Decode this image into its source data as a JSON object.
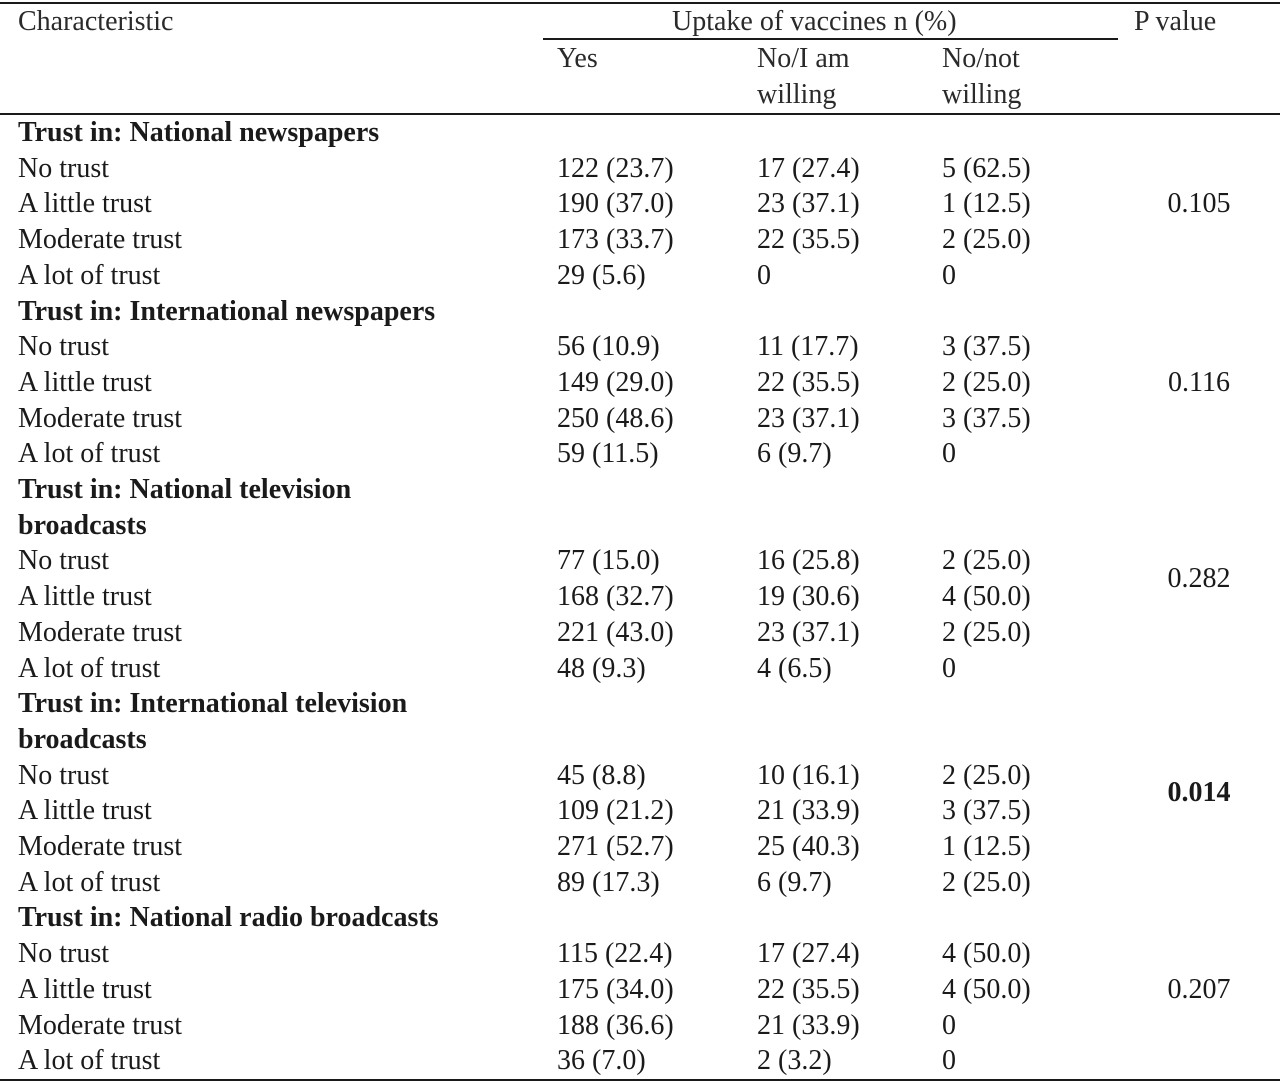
{
  "header": {
    "characteristic": "Characteristic",
    "uptake": "Uptake of vaccines n (%)",
    "p_value": "P value",
    "yes": "Yes",
    "no_willing": [
      "No/I am",
      "willing"
    ],
    "no_not_willing": [
      "No/not",
      "willing"
    ]
  },
  "sections": [
    {
      "title": [
        "Trust in: National newspapers"
      ],
      "p_value": "0.105",
      "p_bold": false,
      "rows": [
        {
          "label": "No trust",
          "yes": "122 (23.7)",
          "willing": "17 (27.4)",
          "not_willing": "5 (62.5)"
        },
        {
          "label": "A little trust",
          "yes": "190 (37.0)",
          "willing": "23 (37.1)",
          "not_willing": "1 (12.5)"
        },
        {
          "label": "Moderate trust",
          "yes": "173 (33.7)",
          "willing": "22 (35.5)",
          "not_willing": "2 (25.0)"
        },
        {
          "label": "A lot of trust",
          "yes": "29 (5.6)",
          "willing": "0",
          "not_willing": "0"
        }
      ]
    },
    {
      "title": [
        "Trust in: International newspapers"
      ],
      "p_value": "0.116",
      "p_bold": false,
      "rows": [
        {
          "label": "No trust",
          "yes": "56 (10.9)",
          "willing": "11 (17.7)",
          "not_willing": "3 (37.5)"
        },
        {
          "label": "A little trust",
          "yes": "149 (29.0)",
          "willing": "22 (35.5)",
          "not_willing": "2 (25.0)"
        },
        {
          "label": "Moderate trust",
          "yes": "250 (48.6)",
          "willing": "23 (37.1)",
          "not_willing": "3 (37.5)"
        },
        {
          "label": "A lot of trust",
          "yes": "59 (11.5)",
          "willing": "6 (9.7)",
          "not_willing": "0"
        }
      ]
    },
    {
      "title": [
        "Trust in: National television",
        "broadcasts"
      ],
      "p_value": "0.282",
      "p_bold": false,
      "rows": [
        {
          "label": "No trust",
          "yes": "77 (15.0)",
          "willing": "16 (25.8)",
          "not_willing": "2 (25.0)"
        },
        {
          "label": "A little trust",
          "yes": "168 (32.7)",
          "willing": "19 (30.6)",
          "not_willing": "4 (50.0)"
        },
        {
          "label": "Moderate trust",
          "yes": "221 (43.0)",
          "willing": "23 (37.1)",
          "not_willing": "2 (25.0)"
        },
        {
          "label": "A lot of trust",
          "yes": "48 (9.3)",
          "willing": "4 (6.5)",
          "not_willing": "0"
        }
      ]
    },
    {
      "title": [
        "Trust in: International television",
        "broadcasts"
      ],
      "p_value": "0.014",
      "p_bold": true,
      "rows": [
        {
          "label": "No trust",
          "yes": "45 (8.8)",
          "willing": "10 (16.1)",
          "not_willing": "2 (25.0)"
        },
        {
          "label": "A little trust",
          "yes": "109 (21.2)",
          "willing": "21 (33.9)",
          "not_willing": "3 (37.5)"
        },
        {
          "label": "Moderate trust",
          "yes": "271 (52.7)",
          "willing": "25 (40.3)",
          "not_willing": "1 (12.5)"
        },
        {
          "label": "A lot of trust",
          "yes": "89 (17.3)",
          "willing": "6 (9.7)",
          "not_willing": "2 (25.0)"
        }
      ]
    },
    {
      "title": [
        "Trust in: National radio broadcasts"
      ],
      "p_value": "0.207",
      "p_bold": false,
      "rows": [
        {
          "label": "No trust",
          "yes": "115 (22.4)",
          "willing": "17 (27.4)",
          "not_willing": "4 (50.0)"
        },
        {
          "label": "A little trust",
          "yes": "175 (34.0)",
          "willing": "22 (35.5)",
          "not_willing": "4 (50.0)"
        },
        {
          "label": "Moderate trust",
          "yes": "188 (36.6)",
          "willing": "21 (33.9)",
          "not_willing": "0"
        },
        {
          "label": "A lot of trust",
          "yes": "36 (7.0)",
          "willing": "2 (3.2)",
          "not_willing": "0"
        }
      ]
    }
  ]
}
